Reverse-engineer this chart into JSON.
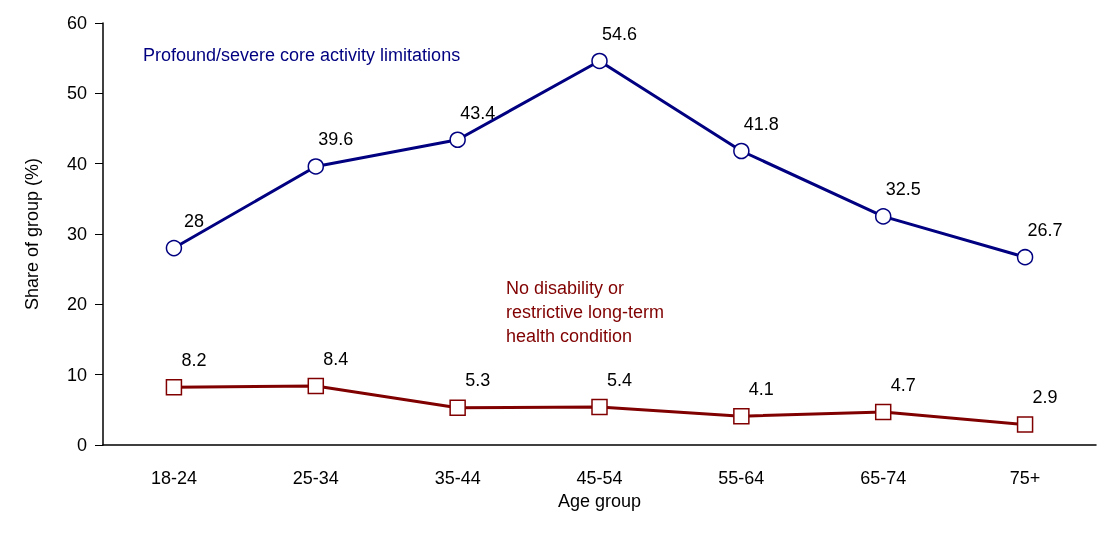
{
  "chart_data": {
    "type": "line",
    "xlabel": "Age group",
    "ylabel": "Share of group (%)",
    "categories": [
      "18-24",
      "25-34",
      "35-44",
      "45-54",
      "55-64",
      "65-74",
      "75+"
    ],
    "series": [
      {
        "name": "Profound/severe core activity limitations",
        "color": "#000080",
        "marker": "circle",
        "values": [
          28,
          39.6,
          43.4,
          54.6,
          41.8,
          32.5,
          26.7
        ]
      },
      {
        "name": "No disability or restrictive long-term health condition",
        "color": "#800000",
        "marker": "square",
        "values": [
          8.2,
          8.4,
          5.3,
          5.4,
          4.1,
          4.7,
          2.9
        ]
      }
    ],
    "ylim": [
      0,
      60
    ],
    "yticks": [
      0,
      10,
      20,
      30,
      40,
      50,
      60
    ],
    "grid": false,
    "legend": false,
    "data_labels": true,
    "line_style": "solid"
  }
}
